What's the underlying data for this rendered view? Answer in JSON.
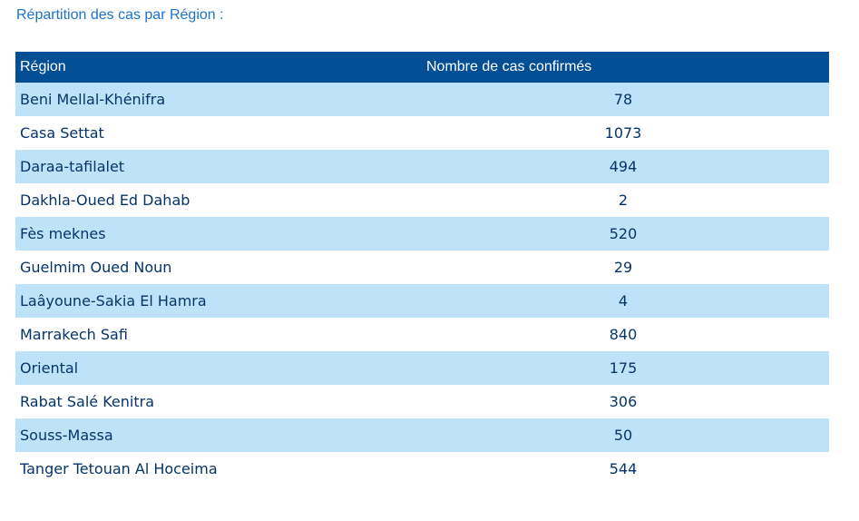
{
  "heading": "Répartition des cas par Région :",
  "table": {
    "headers": {
      "region": "Région",
      "count": "Nombre de cas confirmés"
    },
    "rows": [
      {
        "region": "Beni Mellal-Khénifra",
        "count": "78"
      },
      {
        "region": "Casa Settat",
        "count": "1073"
      },
      {
        "region": "Daraa-tafilalet",
        "count": "494"
      },
      {
        "region": "Dakhla-Oued Ed Dahab",
        "count": "2"
      },
      {
        "region": "Fès meknes",
        "count": "520"
      },
      {
        "region": "Guelmim Oued Noun",
        "count": "29"
      },
      {
        "region": "Laâyoune-Sakia El Hamra",
        "count": "4"
      },
      {
        "region": "Marrakech Safi",
        "count": "840"
      },
      {
        "region": "Oriental",
        "count": "175"
      },
      {
        "region": "Rabat Salé Kenitra",
        "count": "306"
      },
      {
        "region": "Souss-Massa",
        "count": "50"
      },
      {
        "region": "Tanger Tetouan Al Hoceima",
        "count": "544"
      }
    ]
  },
  "colors": {
    "heading": "#1a73c9",
    "header_bg": "#034f96",
    "header_text": "#ffffff",
    "row_stripe": "#bee3f8",
    "row_text": "#06346a"
  }
}
